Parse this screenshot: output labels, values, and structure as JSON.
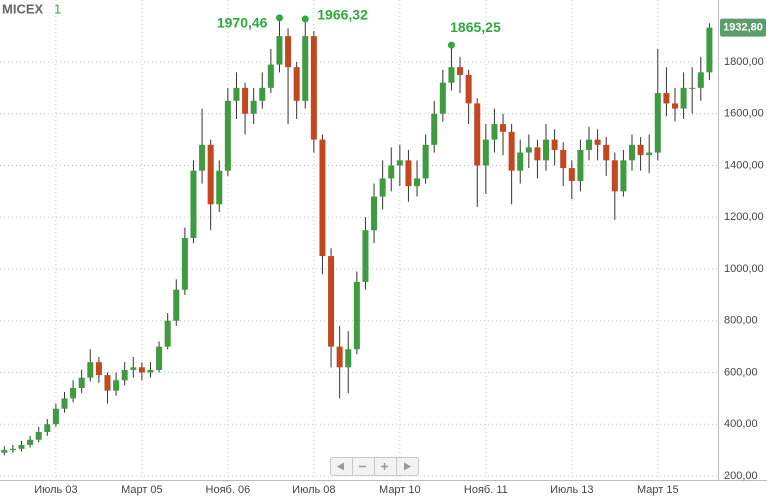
{
  "header": {
    "title": "MICEX",
    "subtitle": "1"
  },
  "chart_data": {
    "type": "candlestick",
    "x": [
      "2002-07",
      "2002-09",
      "2002-11",
      "2003-01",
      "2003-03",
      "2003-05",
      "2003-07",
      "2003-09",
      "2003-11",
      "2004-01",
      "2004-03",
      "2004-05",
      "2004-07",
      "2004-09",
      "2004-11",
      "2005-01",
      "2005-03",
      "2005-05",
      "2005-07",
      "2005-09",
      "2005-11",
      "2006-01",
      "2006-03",
      "2006-05",
      "2006-07",
      "2006-09",
      "2006-11",
      "2007-01",
      "2007-03",
      "2007-05",
      "2007-07",
      "2007-09",
      "2007-11",
      "2008-01",
      "2008-03",
      "2008-05",
      "2008-07",
      "2008-09",
      "2008-11",
      "2009-01",
      "2009-03",
      "2009-05",
      "2009-07",
      "2009-09",
      "2009-11",
      "2010-01",
      "2010-03",
      "2010-05",
      "2010-07",
      "2010-09",
      "2010-11",
      "2011-01",
      "2011-03",
      "2011-05",
      "2011-07",
      "2011-09",
      "2011-11",
      "2012-01",
      "2012-03",
      "2012-05",
      "2012-07",
      "2012-09",
      "2012-11",
      "2013-01",
      "2013-03",
      "2013-05",
      "2013-07",
      "2013-09",
      "2013-11",
      "2014-01",
      "2014-03",
      "2014-05",
      "2014-07",
      "2014-09",
      "2014-11",
      "2015-01",
      "2015-03",
      "2015-05",
      "2015-07",
      "2015-09",
      "2015-11",
      "2016-01",
      "2016-03"
    ],
    "open": [
      290,
      300,
      305,
      320,
      340,
      370,
      400,
      460,
      500,
      540,
      580,
      640,
      590,
      530,
      570,
      610,
      620,
      600,
      610,
      700,
      800,
      920,
      1120,
      1380,
      1480,
      1250,
      1380,
      1650,
      1700,
      1600,
      1650,
      1700,
      1790,
      1900,
      1780,
      1650,
      1900,
      1500,
      1050,
      700,
      620,
      690,
      950,
      1150,
      1280,
      1350,
      1400,
      1420,
      1320,
      1350,
      1480,
      1600,
      1720,
      1780,
      1750,
      1640,
      1400,
      1500,
      1560,
      1530,
      1380,
      1450,
      1470,
      1420,
      1500,
      1460,
      1390,
      1340,
      1460,
      1500,
      1480,
      1420,
      1300,
      1420,
      1480,
      1440,
      1450,
      1680,
      1640,
      1620,
      1700,
      1700,
      1760
    ],
    "high": [
      315,
      320,
      335,
      355,
      390,
      420,
      480,
      525,
      570,
      610,
      690,
      660,
      600,
      600,
      640,
      660,
      640,
      640,
      720,
      830,
      960,
      1160,
      1420,
      1620,
      1500,
      1420,
      1700,
      1760,
      1720,
      1700,
      1760,
      1850,
      1970.46,
      1930,
      1800,
      1966.32,
      1920,
      1520,
      1080,
      780,
      760,
      990,
      1200,
      1330,
      1420,
      1470,
      1480,
      1460,
      1420,
      1520,
      1650,
      1770,
      1865.25,
      1820,
      1770,
      1660,
      1560,
      1620,
      1600,
      1560,
      1500,
      1520,
      1500,
      1560,
      1540,
      1490,
      1420,
      1500,
      1550,
      1540,
      1510,
      1450,
      1460,
      1520,
      1510,
      1520,
      1850,
      1780,
      1700,
      1760,
      1780,
      1820,
      1950
    ],
    "low": [
      280,
      290,
      295,
      310,
      330,
      355,
      390,
      445,
      485,
      520,
      565,
      560,
      480,
      510,
      550,
      580,
      570,
      580,
      600,
      690,
      780,
      900,
      1100,
      1330,
      1150,
      1220,
      1360,
      1580,
      1520,
      1560,
      1620,
      1680,
      1760,
      1560,
      1580,
      1620,
      1450,
      980,
      620,
      500,
      520,
      670,
      920,
      1100,
      1230,
      1300,
      1320,
      1260,
      1280,
      1330,
      1450,
      1570,
      1690,
      1680,
      1560,
      1240,
      1290,
      1450,
      1440,
      1250,
      1330,
      1390,
      1350,
      1380,
      1400,
      1320,
      1270,
      1300,
      1420,
      1420,
      1360,
      1190,
      1280,
      1380,
      1380,
      1370,
      1420,
      1590,
      1570,
      1580,
      1600,
      1650,
      1730
    ],
    "close": [
      300,
      305,
      320,
      340,
      370,
      400,
      460,
      500,
      540,
      580,
      640,
      590,
      530,
      570,
      610,
      620,
      600,
      610,
      700,
      800,
      920,
      1120,
      1380,
      1480,
      1250,
      1380,
      1650,
      1700,
      1600,
      1650,
      1700,
      1790,
      1900,
      1780,
      1650,
      1900,
      1500,
      1050,
      700,
      620,
      690,
      950,
      1150,
      1280,
      1350,
      1400,
      1420,
      1320,
      1350,
      1480,
      1600,
      1720,
      1780,
      1750,
      1640,
      1400,
      1500,
      1560,
      1530,
      1380,
      1450,
      1470,
      1420,
      1500,
      1460,
      1390,
      1340,
      1460,
      1500,
      1480,
      1420,
      1300,
      1420,
      1480,
      1440,
      1450,
      1680,
      1640,
      1620,
      1700,
      1700,
      1760,
      1932.8
    ],
    "last_close_label": "1932,80",
    "colors": {
      "up": "#3f9b3f",
      "down": "#c4481f",
      "wick": "#333333",
      "marker": "#2eaa3c",
      "badge": "#5b9e6a"
    },
    "annotations": [
      {
        "x": "2007-11",
        "label": "1970,46"
      },
      {
        "x": "2008-05",
        "label": "1966,32"
      },
      {
        "x": "2011-03",
        "label": "1865,25"
      }
    ],
    "xlim": [
      "2002-06",
      "2016-05"
    ],
    "xticks": [
      {
        "value": "2003-07",
        "label": "Июль 03"
      },
      {
        "value": "2005-03",
        "label": "Март 05"
      },
      {
        "value": "2006-11",
        "label": "Нояб. 06"
      },
      {
        "value": "2008-07",
        "label": "Июль 08"
      },
      {
        "value": "2010-03",
        "label": "Март 10"
      },
      {
        "value": "2011-11",
        "label": "Нояб. 11"
      },
      {
        "value": "2013-07",
        "label": "Июль 13"
      },
      {
        "value": "2015-03",
        "label": "Март 15"
      }
    ],
    "ylim": [
      200,
      2000
    ],
    "yticks": [
      {
        "value": 200,
        "label": "200,00"
      },
      {
        "value": 400,
        "label": "400,00"
      },
      {
        "value": 600,
        "label": "600,00"
      },
      {
        "value": 800,
        "label": "800,00"
      },
      {
        "value": 1000,
        "label": "1000,00"
      },
      {
        "value": 1200,
        "label": "1200,00"
      },
      {
        "value": 1400,
        "label": "1400,00"
      },
      {
        "value": 1600,
        "label": "1600,00"
      },
      {
        "value": 1800,
        "label": "1800,00"
      }
    ],
    "grid": true
  }
}
